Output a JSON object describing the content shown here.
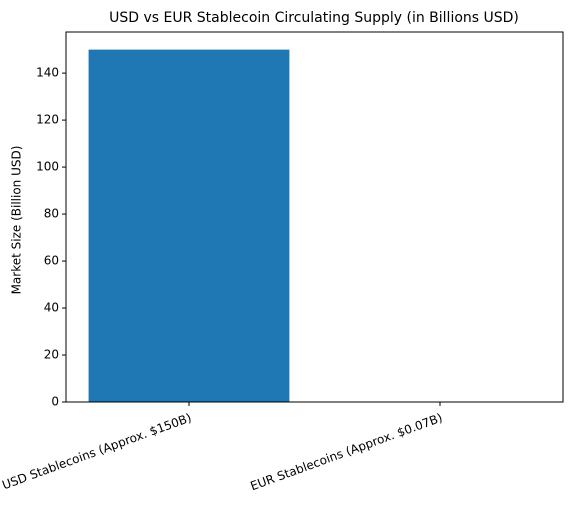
{
  "chart_data": {
    "type": "bar",
    "title": "USD vs EUR Stablecoin Circulating Supply (in Billions USD)",
    "y_label": "Market Size (Billion USD)",
    "categories": [
      "USD Stablecoins (Approx. $150B)",
      "EUR Stablecoins (Approx. $0.07B)"
    ],
    "values": [
      150,
      0.07
    ],
    "color": "#1f77b4",
    "ylim": [
      0,
      157.5
    ],
    "yticks": [
      0,
      20,
      40,
      60,
      80,
      100,
      120,
      140
    ],
    "grid": false
  }
}
